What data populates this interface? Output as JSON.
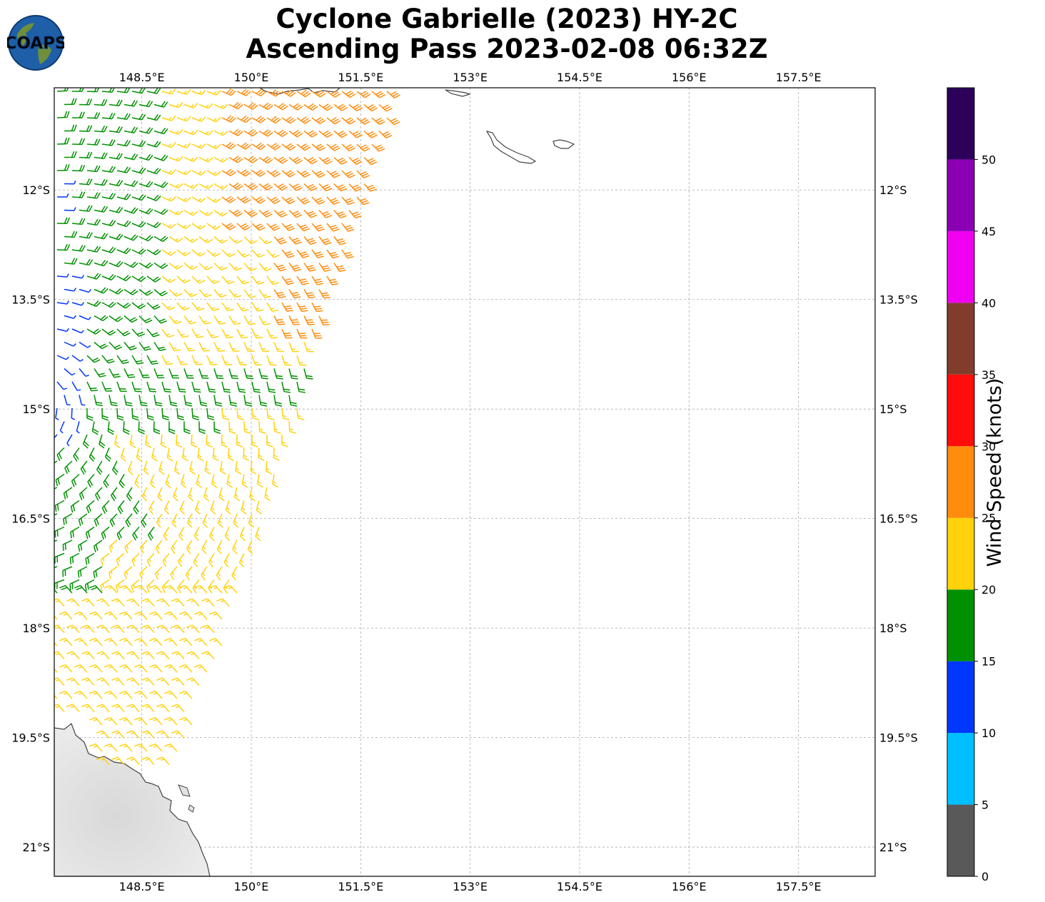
{
  "header": {
    "logo_text": "COAPS",
    "title_line1": "Cyclone Gabrielle (2023) HY-2C",
    "title_line2": "Ascending Pass 2023-02-08 06:32Z"
  },
  "map": {
    "lon_range": [
      147.3,
      158.55
    ],
    "lat_range": [
      -21.4,
      -10.6
    ],
    "lon_ticks": [
      "148.5°E",
      "150°E",
      "151.5°E",
      "153°E",
      "154.5°E",
      "156°E",
      "157.5°E"
    ],
    "lon_tick_values": [
      148.5,
      150,
      151.5,
      153,
      154.5,
      156,
      157.5
    ],
    "lat_ticks": [
      "12°S",
      "13.5°S",
      "15°S",
      "16.5°S",
      "18°S",
      "19.5°S",
      "21°S"
    ],
    "lat_tick_values": [
      -12,
      -13.5,
      -15,
      -16.5,
      -18,
      -19.5,
      -21
    ],
    "gridlines": true
  },
  "colorbar": {
    "label": "Wind Speed (knots)",
    "ticks": [
      "0",
      "5",
      "10",
      "15",
      "20",
      "25",
      "30",
      "35",
      "40",
      "45",
      "50"
    ],
    "colors": [
      "#595959",
      "#00bfff",
      "#0037ff",
      "#009100",
      "#ffd20c",
      "#ff8c0c",
      "#ff0c0c",
      "#823c2c",
      "#f000f0",
      "#8b00b4",
      "#2d005a"
    ]
  }
}
